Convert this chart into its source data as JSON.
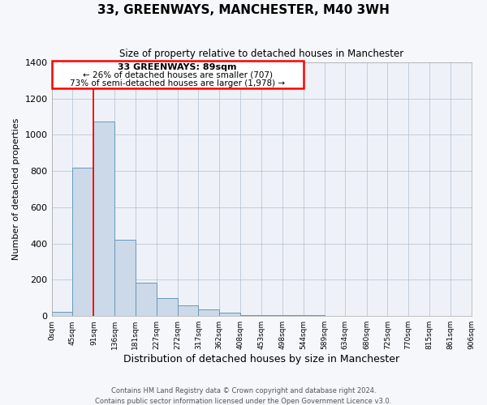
{
  "title": "33, GREENWAYS, MANCHESTER, M40 3WH",
  "subtitle": "Size of property relative to detached houses in Manchester",
  "xlabel": "Distribution of detached houses by size in Manchester",
  "ylabel": "Number of detached properties",
  "bar_color": "#ccd9e8",
  "bar_edge_color": "#6699bb",
  "bg_color": "#eef2f8",
  "bin_edges": [
    0,
    45,
    91,
    136,
    181,
    227,
    272,
    317,
    362,
    408,
    453,
    498,
    544,
    589,
    634,
    680,
    725,
    770,
    815,
    861,
    906
  ],
  "bin_labels": [
    "0sqm",
    "45sqm",
    "91sqm",
    "136sqm",
    "181sqm",
    "227sqm",
    "272sqm",
    "317sqm",
    "362sqm",
    "408sqm",
    "453sqm",
    "498sqm",
    "544sqm",
    "589sqm",
    "634sqm",
    "680sqm",
    "725sqm",
    "770sqm",
    "815sqm",
    "861sqm",
    "906sqm"
  ],
  "bar_heights": [
    25,
    820,
    1075,
    420,
    182,
    100,
    58,
    37,
    18,
    5,
    5,
    5,
    5,
    0,
    0,
    0,
    0,
    0,
    0,
    0
  ],
  "ylim": [
    0,
    1400
  ],
  "yticks": [
    0,
    200,
    400,
    600,
    800,
    1000,
    1200,
    1400
  ],
  "property_line_x": 91,
  "annotation_title": "33 GREENWAYS: 89sqm",
  "annotation_line1": "← 26% of detached houses are smaller (707)",
  "annotation_line2": "73% of semi-detached houses are larger (1,978) →",
  "footer1": "Contains HM Land Registry data © Crown copyright and database right 2024.",
  "footer2": "Contains public sector information licensed under the Open Government Licence v3.0."
}
